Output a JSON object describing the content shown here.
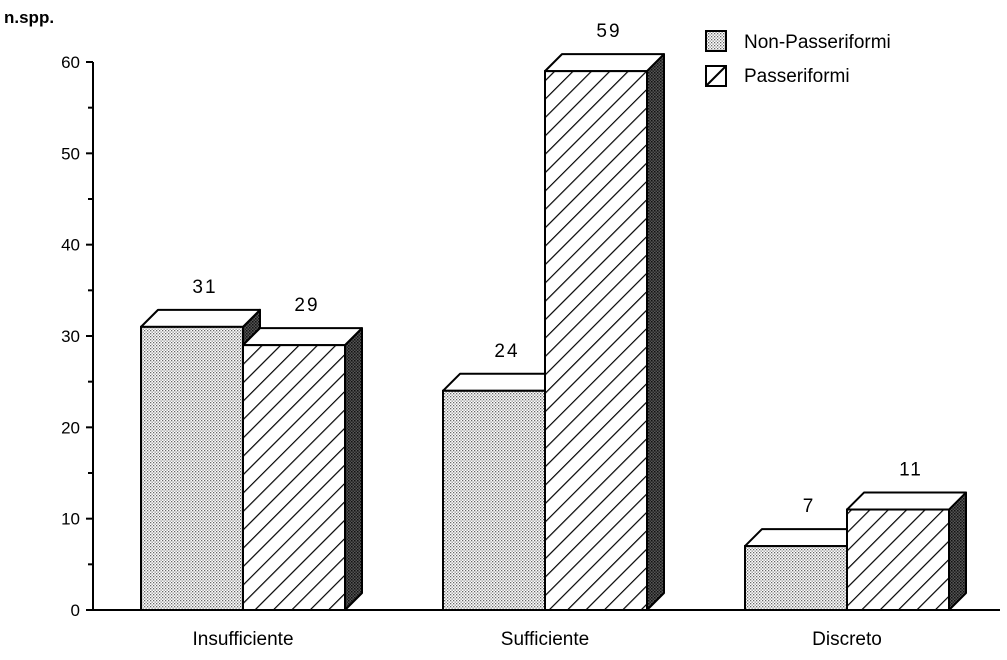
{
  "chart_data": {
    "type": "bar",
    "ylabel": "n.spp.",
    "xlabel": "",
    "title": "",
    "ylim": [
      0,
      60
    ],
    "yticks": [
      0,
      10,
      20,
      30,
      40,
      50,
      60
    ],
    "categories": [
      "Insufficiente",
      "Sufficiente",
      "Discreto"
    ],
    "series": [
      {
        "name": "Non-Passeriformi",
        "values": [
          31,
          24,
          7
        ],
        "pattern": "dotted"
      },
      {
        "name": "Passeriformi",
        "values": [
          29,
          59,
          11
        ],
        "pattern": "hatched"
      }
    ],
    "data_labels": [
      [
        "31",
        "24",
        "7"
      ],
      [
        "29",
        "59",
        "11"
      ]
    ],
    "legend_position": "top-right",
    "grid": false,
    "style": "3d-bars"
  }
}
